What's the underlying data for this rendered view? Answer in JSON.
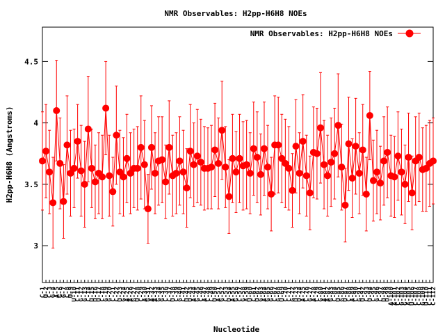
{
  "chart_data": {
    "type": "line",
    "title": "NMR Observables: H2pp-H6H8 NOEs",
    "xlabel": "Nucleotide",
    "ylabel": "H2pp-H6H8 (Angstroms)",
    "ylim": [
      2.7,
      4.78
    ],
    "yticks": [
      3,
      3.5,
      4,
      4.5
    ],
    "ytick_labels": [
      "3",
      "3.5",
      "4",
      "4.5"
    ],
    "grid": false,
    "legend_position": "top-right",
    "series": [
      {
        "name": "NMR Observables: H2pp-H6H8 NOEs",
        "color": "#ff0000",
        "x": [
          1,
          2,
          3,
          4,
          5,
          6,
          7,
          8,
          9,
          10,
          11,
          12,
          13,
          14,
          15,
          16,
          17,
          18,
          19,
          20,
          21,
          22,
          23,
          24,
          25,
          26,
          27,
          28,
          29,
          30,
          31,
          32,
          33,
          34,
          35,
          36,
          37,
          38,
          39,
          40,
          41,
          42,
          43,
          44,
          45,
          46,
          47,
          48,
          49,
          50,
          51,
          52,
          53,
          54,
          55,
          56,
          57,
          58,
          59,
          60,
          61,
          62,
          63,
          64,
          65,
          66,
          67,
          68,
          69,
          70,
          71,
          72,
          73,
          74,
          75,
          76,
          77,
          78,
          79,
          80,
          81,
          82,
          83,
          84,
          85,
          86,
          87,
          88,
          89,
          90,
          91,
          92,
          93,
          94,
          95,
          96,
          97,
          98,
          99,
          100,
          101,
          102,
          103,
          104,
          105,
          106,
          107,
          108,
          109,
          110,
          111,
          112
        ],
        "values": [
          3.69,
          3.77,
          3.6,
          3.35,
          4.1,
          3.67,
          3.36,
          3.82,
          3.59,
          3.63,
          3.85,
          3.61,
          3.5,
          3.95,
          3.63,
          3.52,
          3.59,
          3.56,
          4.12,
          3.57,
          3.44,
          3.9,
          3.6,
          3.56,
          3.71,
          3.59,
          3.63,
          3.63,
          3.8,
          3.66,
          3.3,
          3.8,
          3.59,
          3.69,
          3.7,
          3.52,
          3.8,
          3.57,
          3.59,
          3.69,
          3.6,
          3.47,
          3.77,
          3.66,
          3.73,
          3.68,
          3.63,
          3.63,
          3.64,
          3.78,
          3.67,
          3.94,
          3.64,
          3.4,
          3.71,
          3.6,
          3.71,
          3.65,
          3.66,
          3.59,
          3.79,
          3.72,
          3.58,
          3.79,
          3.64,
          3.42,
          3.82,
          3.82,
          3.71,
          3.67,
          3.63,
          3.45,
          3.81,
          3.59,
          3.85,
          3.57,
          3.43,
          3.76,
          3.75,
          3.96,
          3.66,
          3.57,
          3.68,
          3.75,
          3.98,
          3.64,
          3.33,
          3.83,
          3.55,
          3.81,
          3.59,
          3.78,
          3.42,
          4.06,
          3.53,
          3.6,
          3.51,
          3.69,
          3.76,
          3.57,
          3.56,
          3.73,
          3.6,
          3.5,
          3.72,
          3.43,
          3.69,
          3.72,
          3.62,
          3.63,
          3.67,
          3.69
        ],
        "errors": [
          0.4,
          0.38,
          0.34,
          0.37,
          0.41,
          0.37,
          0.3,
          0.4,
          0.35,
          0.32,
          0.3,
          0.37,
          0.35,
          0.43,
          0.32,
          0.3,
          0.33,
          0.34,
          0.38,
          0.33,
          0.28,
          0.4,
          0.34,
          0.32,
          0.36,
          0.33,
          0.32,
          0.34,
          0.42,
          0.36,
          0.28,
          0.34,
          0.33,
          0.36,
          0.35,
          0.3,
          0.38,
          0.33,
          0.33,
          0.36,
          0.34,
          0.32,
          0.38,
          0.34,
          0.38,
          0.35,
          0.34,
          0.33,
          0.34,
          0.38,
          0.37,
          0.4,
          0.33,
          0.3,
          0.36,
          0.33,
          0.36,
          0.36,
          0.36,
          0.33,
          0.38,
          0.37,
          0.33,
          0.38,
          0.34,
          0.3,
          0.4,
          0.39,
          0.36,
          0.36,
          0.34,
          0.3,
          0.38,
          0.33,
          0.38,
          0.33,
          0.3,
          0.37,
          0.37,
          0.45,
          0.36,
          0.33,
          0.36,
          0.37,
          0.42,
          0.35,
          0.3,
          0.38,
          0.32,
          0.39,
          0.33,
          0.37,
          0.3,
          0.36,
          0.33,
          0.34,
          0.3,
          0.36,
          0.37,
          0.33,
          0.33,
          0.36,
          0.35,
          0.32,
          0.36,
          0.3,
          0.36,
          0.36,
          0.34,
          0.35,
          0.35,
          0.35
        ]
      }
    ],
    "x_tick_labels": [
      "C-1",
      "U-2",
      "C-3",
      "G-4",
      "A-5",
      "G-6",
      "G-7",
      "C-8",
      "U-9",
      "U-10",
      "C-11",
      "G-12",
      "G-13",
      "C-14",
      "U-15",
      "U-16",
      "U-17",
      "C-18",
      "G-19",
      "G-20",
      "C-21",
      "C-22",
      "U-23",
      "G-24",
      "A-25",
      "A-26",
      "G-27",
      "U-28",
      "C-29",
      "A-30",
      "G-31",
      "A-32",
      "A-33",
      "G-34",
      "G-35",
      "C-36",
      "C-37",
      "U-38",
      "C-39",
      "G-40",
      "C-41",
      "U-42",
      "U-43",
      "A-44",
      "G-45",
      "C-46",
      "A-47",
      "C-48",
      "C-49",
      "U-50",
      "A-51",
      "G-52",
      "C-53",
      "U-54",
      "A-55",
      "G-56",
      "C-57",
      "G-58",
      "A-59",
      "U-60",
      "C-61",
      "U-62",
      "G-63",
      "A-64",
      "G-65",
      "G-66",
      "C-67",
      "G-68",
      "U-69",
      "C-70",
      "C-71",
      "G-72",
      "U-73",
      "U-74",
      "A-75",
      "C-76",
      "G-77",
      "A-78",
      "C-79",
      "G-80",
      "A-81",
      "A-82",
      "G-83",
      "C-84",
      "U-85",
      "G-86",
      "U-87",
      "C-88",
      "A-89",
      "C-90",
      "G-91",
      "U-92",
      "C-93",
      "U-94",
      "C-95",
      "G-96",
      "C-97",
      "U-98",
      "U-99",
      "A-100",
      "A-101",
      "C-102",
      "G-103",
      "G-104",
      "A-105",
      "U-106",
      "C-107",
      "C-108",
      "G-109",
      "U-110",
      "C-111",
      "C-112"
    ]
  }
}
